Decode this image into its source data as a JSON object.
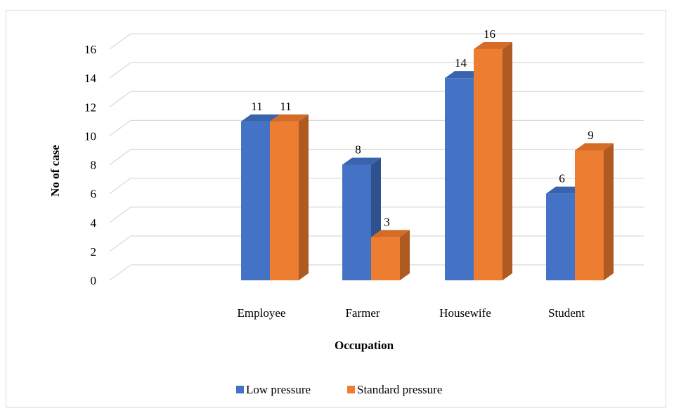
{
  "chart_data": {
    "type": "bar",
    "categories": [
      "Employee",
      "Farmer",
      "Housewife",
      "Student"
    ],
    "series": [
      {
        "name": "Low pressure",
        "values": [
          11,
          8,
          14,
          6
        ],
        "color": "#4472c4",
        "side_color": "#2f528f",
        "top_color": "#3a63ad"
      },
      {
        "name": "Standard pressure",
        "values": [
          11,
          3,
          16,
          9
        ],
        "color": "#ed7d31",
        "side_color": "#ae5a21",
        "top_color": "#d46b26"
      }
    ],
    "xlabel": "Occupation",
    "ylabel": "No of case",
    "ylim": [
      0,
      16
    ],
    "yticks": [
      0,
      2,
      4,
      6,
      8,
      10,
      12,
      14,
      16
    ],
    "grid": true,
    "legend": "bottom",
    "style": "3d-clustered-column"
  }
}
